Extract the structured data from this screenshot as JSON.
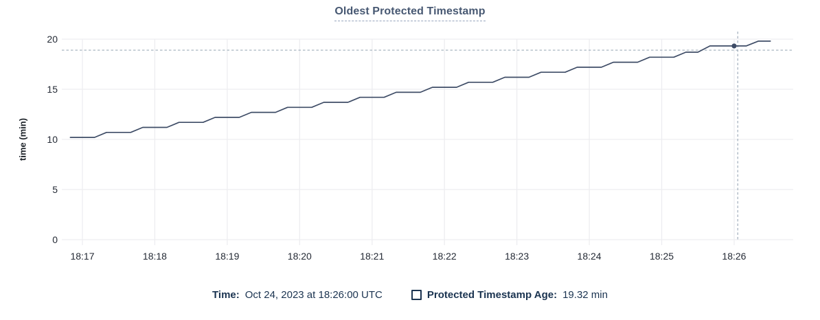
{
  "title": "Oldest Protected Timestamp",
  "colors": {
    "title": "#475872",
    "line": "#3e4c66",
    "grid": "#ededf0",
    "crosshair": "#9fadba",
    "legend_text": "#1a3350",
    "tick_text": "#242a35"
  },
  "chart_data": {
    "type": "line",
    "title": "Oldest Protected Timestamp",
    "xlabel": "",
    "ylabel": "time (min)",
    "ylim": [
      0,
      20
    ],
    "grid": true,
    "legend_position": "bottom",
    "yticks": [
      "20",
      "15",
      "10",
      "5",
      "0"
    ],
    "xticks": [
      "18:17",
      "18:18",
      "18:19",
      "18:20",
      "18:21",
      "18:22",
      "18:23",
      "18:24",
      "18:25",
      "18:26"
    ],
    "x_window": [
      "18:16:43",
      "18:26:49"
    ],
    "series": [
      {
        "name": "Protected Timestamp Age",
        "unit": "min",
        "points": [
          [
            "18:16:50",
            10.2
          ],
          [
            "18:17:10",
            10.2
          ],
          [
            "18:17:20",
            10.7
          ],
          [
            "18:17:40",
            10.7
          ],
          [
            "18:17:50",
            11.2
          ],
          [
            "18:18:10",
            11.2
          ],
          [
            "18:18:20",
            11.7
          ],
          [
            "18:18:40",
            11.7
          ],
          [
            "18:18:50",
            12.2
          ],
          [
            "18:19:10",
            12.2
          ],
          [
            "18:19:20",
            12.7
          ],
          [
            "18:19:40",
            12.7
          ],
          [
            "18:19:50",
            13.2
          ],
          [
            "18:20:10",
            13.2
          ],
          [
            "18:20:20",
            13.7
          ],
          [
            "18:20:40",
            13.7
          ],
          [
            "18:20:50",
            14.2
          ],
          [
            "18:21:10",
            14.2
          ],
          [
            "18:21:20",
            14.7
          ],
          [
            "18:21:40",
            14.7
          ],
          [
            "18:21:50",
            15.2
          ],
          [
            "18:22:10",
            15.2
          ],
          [
            "18:22:20",
            15.7
          ],
          [
            "18:22:40",
            15.7
          ],
          [
            "18:22:50",
            16.2
          ],
          [
            "18:23:10",
            16.2
          ],
          [
            "18:23:20",
            16.7
          ],
          [
            "18:23:40",
            16.7
          ],
          [
            "18:23:50",
            17.2
          ],
          [
            "18:24:10",
            17.2
          ],
          [
            "18:24:20",
            17.7
          ],
          [
            "18:24:40",
            17.7
          ],
          [
            "18:24:50",
            18.2
          ],
          [
            "18:25:10",
            18.2
          ],
          [
            "18:25:20",
            18.7
          ],
          [
            "18:25:30",
            18.7
          ],
          [
            "18:25:40",
            19.32
          ],
          [
            "18:26:10",
            19.32
          ],
          [
            "18:26:20",
            19.8
          ],
          [
            "18:26:30",
            19.8
          ]
        ]
      }
    ],
    "hover_point": {
      "time": "18:26:00",
      "value": 19.32
    },
    "cursor": {
      "time": "18:26:03",
      "value": 18.9
    }
  },
  "legend": {
    "time_label": "Time:",
    "time_value": "Oct 24, 2023 at 18:26:00 UTC",
    "series_label": "Protected Timestamp Age:",
    "series_value": "19.32 min"
  }
}
